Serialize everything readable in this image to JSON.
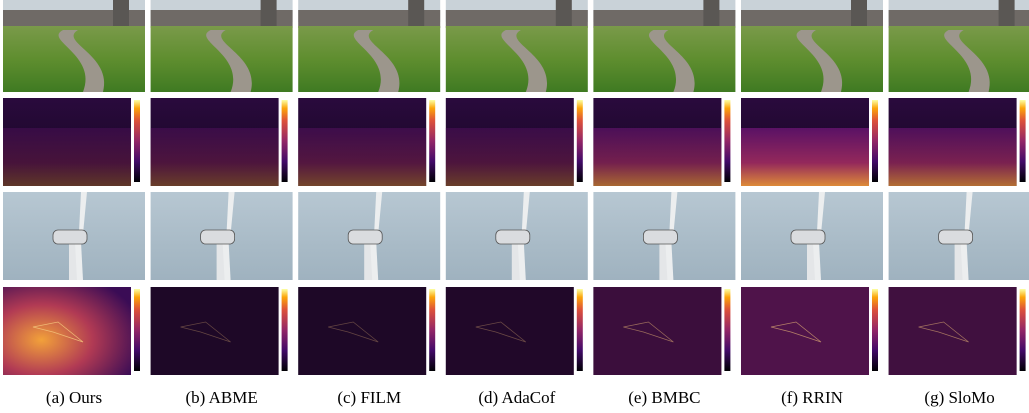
{
  "captions": [
    "(a) Ours",
    "(b) ABME",
    "(c) FILM",
    "(d) AdaCof",
    "(e) BMBC",
    "(f) RRIN",
    "(g) SloMo"
  ]
}
